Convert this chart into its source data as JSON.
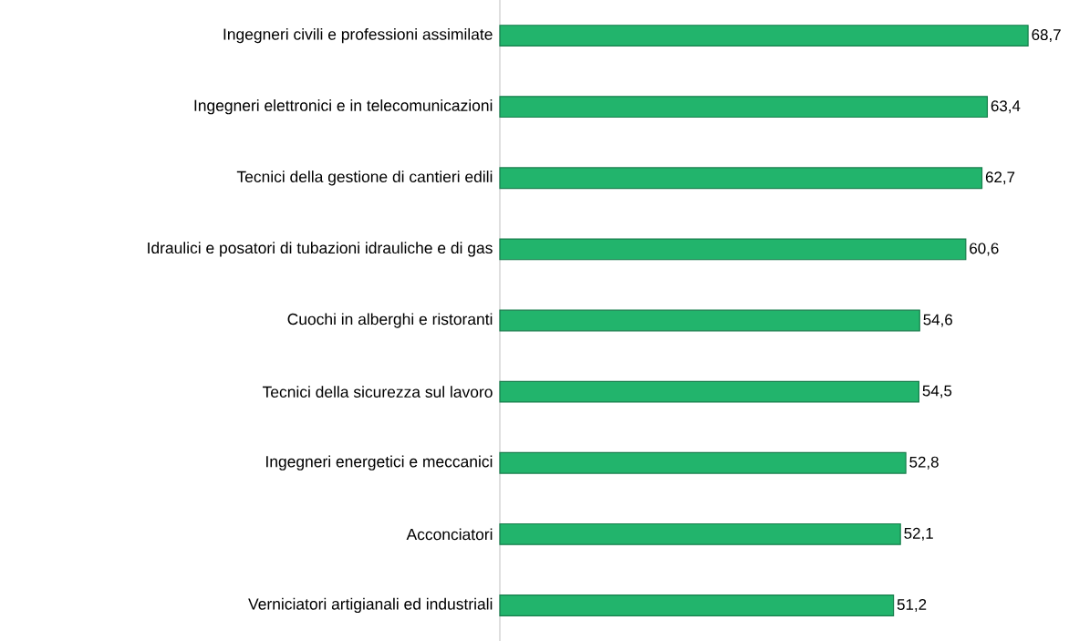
{
  "chart_data": {
    "type": "bar",
    "orientation": "horizontal",
    "categories": [
      "Ingegneri civili e professioni assimilate",
      "Ingegneri elettronici e in telecomunicazioni",
      "Tecnici della gestione di cantieri edili",
      "Idraulici e posatori di tubazioni idrauliche e di gas",
      "Cuochi in alberghi e ristoranti",
      "Tecnici della sicurezza sul lavoro",
      "Ingegneri energetici e meccanici",
      "Acconciatori",
      "Verniciatori artigianali ed industriali"
    ],
    "values": [
      68.7,
      63.4,
      62.7,
      60.6,
      54.6,
      54.5,
      52.8,
      52.1,
      51.2
    ],
    "value_labels": [
      "68,7",
      "63,4",
      "62,7",
      "60,6",
      "54,6",
      "54,5",
      "52,8",
      "52,1",
      "51,2"
    ],
    "color": "#22b46c"
  }
}
